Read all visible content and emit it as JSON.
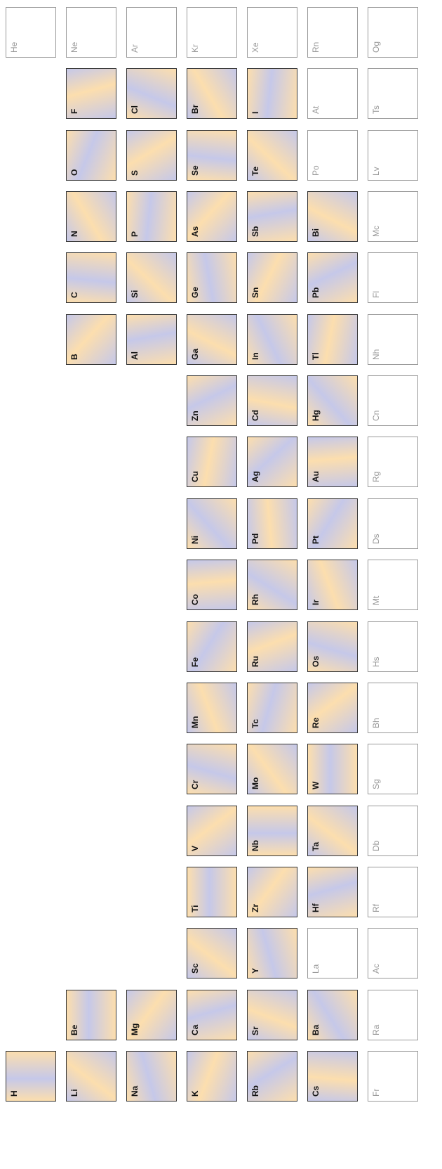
{
  "periods": [
    [
      {
        "symbol": "H",
        "has_data": true
      },
      null,
      null,
      null,
      null,
      null,
      null,
      null,
      null,
      null,
      null,
      null,
      null,
      null,
      null,
      null,
      null,
      {
        "symbol": "He",
        "has_data": false
      }
    ],
    [
      {
        "symbol": "Li",
        "has_data": true
      },
      {
        "symbol": "Be",
        "has_data": true
      },
      null,
      null,
      null,
      null,
      null,
      null,
      null,
      null,
      null,
      null,
      {
        "symbol": "B",
        "has_data": true
      },
      {
        "symbol": "C",
        "has_data": true
      },
      {
        "symbol": "N",
        "has_data": true
      },
      {
        "symbol": "O",
        "has_data": true
      },
      {
        "symbol": "F",
        "has_data": true
      },
      {
        "symbol": "Ne",
        "has_data": false
      }
    ],
    [
      {
        "symbol": "Na",
        "has_data": true
      },
      {
        "symbol": "Mg",
        "has_data": true
      },
      null,
      null,
      null,
      null,
      null,
      null,
      null,
      null,
      null,
      null,
      {
        "symbol": "Al",
        "has_data": true
      },
      {
        "symbol": "Si",
        "has_data": true
      },
      {
        "symbol": "P",
        "has_data": true
      },
      {
        "symbol": "S",
        "has_data": true
      },
      {
        "symbol": "Cl",
        "has_data": true
      },
      {
        "symbol": "Ar",
        "has_data": false
      }
    ],
    [
      {
        "symbol": "K",
        "has_data": true
      },
      {
        "symbol": "Ca",
        "has_data": true
      },
      {
        "symbol": "Sc",
        "has_data": true
      },
      {
        "symbol": "Ti",
        "has_data": true
      },
      {
        "symbol": "V",
        "has_data": true
      },
      {
        "symbol": "Cr",
        "has_data": true
      },
      {
        "symbol": "Mn",
        "has_data": true
      },
      {
        "symbol": "Fe",
        "has_data": true
      },
      {
        "symbol": "Co",
        "has_data": true
      },
      {
        "symbol": "Ni",
        "has_data": true
      },
      {
        "symbol": "Cu",
        "has_data": true
      },
      {
        "symbol": "Zn",
        "has_data": true
      },
      {
        "symbol": "Ga",
        "has_data": true
      },
      {
        "symbol": "Ge",
        "has_data": true
      },
      {
        "symbol": "As",
        "has_data": true
      },
      {
        "symbol": "Se",
        "has_data": true
      },
      {
        "symbol": "Br",
        "has_data": true
      },
      {
        "symbol": "Kr",
        "has_data": false
      }
    ],
    [
      {
        "symbol": "Rb",
        "has_data": true
      },
      {
        "symbol": "Sr",
        "has_data": true
      },
      {
        "symbol": "Y",
        "has_data": true
      },
      {
        "symbol": "Zr",
        "has_data": true
      },
      {
        "symbol": "Nb",
        "has_data": true
      },
      {
        "symbol": "Mo",
        "has_data": true
      },
      {
        "symbol": "Tc",
        "has_data": true
      },
      {
        "symbol": "Ru",
        "has_data": true
      },
      {
        "symbol": "Rh",
        "has_data": true
      },
      {
        "symbol": "Pd",
        "has_data": true
      },
      {
        "symbol": "Ag",
        "has_data": true
      },
      {
        "symbol": "Cd",
        "has_data": true
      },
      {
        "symbol": "In",
        "has_data": true
      },
      {
        "symbol": "Sn",
        "has_data": true
      },
      {
        "symbol": "Sb",
        "has_data": true
      },
      {
        "symbol": "Te",
        "has_data": true
      },
      {
        "symbol": "I",
        "has_data": true
      },
      {
        "symbol": "Xe",
        "has_data": false
      }
    ],
    [
      {
        "symbol": "Cs",
        "has_data": true
      },
      {
        "symbol": "Ba",
        "has_data": true
      },
      {
        "symbol": "La",
        "has_data": false
      },
      {
        "symbol": "Hf",
        "has_data": true
      },
      {
        "symbol": "Ta",
        "has_data": true
      },
      {
        "symbol": "W",
        "has_data": true
      },
      {
        "symbol": "Re",
        "has_data": true
      },
      {
        "symbol": "Os",
        "has_data": true
      },
      {
        "symbol": "Ir",
        "has_data": true
      },
      {
        "symbol": "Pt",
        "has_data": true
      },
      {
        "symbol": "Au",
        "has_data": true
      },
      {
        "symbol": "Hg",
        "has_data": true
      },
      {
        "symbol": "Tl",
        "has_data": true
      },
      {
        "symbol": "Pb",
        "has_data": true
      },
      {
        "symbol": "Bi",
        "has_data": true
      },
      {
        "symbol": "Po",
        "has_data": false
      },
      {
        "symbol": "At",
        "has_data": false
      },
      {
        "symbol": "Rn",
        "has_data": false
      }
    ],
    [
      {
        "symbol": "Fr",
        "has_data": false
      },
      {
        "symbol": "Ra",
        "has_data": false
      },
      {
        "symbol": "Ac",
        "has_data": false
      },
      {
        "symbol": "Rf",
        "has_data": false
      },
      {
        "symbol": "Db",
        "has_data": false
      },
      {
        "symbol": "Sg",
        "has_data": false
      },
      {
        "symbol": "Bh",
        "has_data": false
      },
      {
        "symbol": "Hs",
        "has_data": false
      },
      {
        "symbol": "Mt",
        "has_data": false
      },
      {
        "symbol": "Ds",
        "has_data": false
      },
      {
        "symbol": "Rg",
        "has_data": false
      },
      {
        "symbol": "Cn",
        "has_data": false
      },
      {
        "symbol": "Nh",
        "has_data": false
      },
      {
        "symbol": "Fl",
        "has_data": false
      },
      {
        "symbol": "Mc",
        "has_data": false
      },
      {
        "symbol": "Lv",
        "has_data": false
      },
      {
        "symbol": "Ts",
        "has_data": false
      },
      {
        "symbol": "Og",
        "has_data": false
      }
    ]
  ]
}
